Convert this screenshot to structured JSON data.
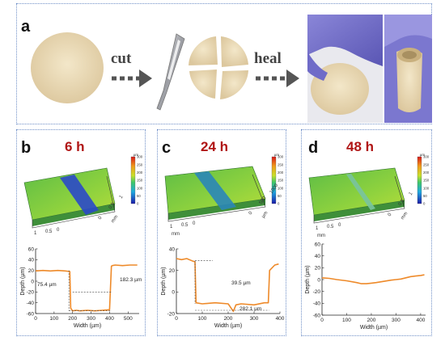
{
  "panel_a": {
    "label": "a",
    "cut_text": "cut",
    "heal_text": "heal"
  },
  "panels": [
    {
      "label": "b",
      "time": "6 h",
      "colorbar": {
        "unit": "µm",
        "ticks": [
          "300",
          "250",
          "200",
          "150",
          "100",
          "50",
          "0"
        ]
      },
      "surface_axes": {
        "x_ticks": [
          "1",
          "0.5",
          "0"
        ],
        "x_unit": "mm",
        "y_ticks": [
          "0",
          "0.5",
          "1"
        ],
        "y_unit": "mm"
      },
      "chart_data": {
        "type": "line",
        "xlabel": "Width (µm)",
        "ylabel": "Depth (µm)",
        "xlim": [
          0,
          560
        ],
        "ylim": [
          -60,
          60
        ],
        "x_ticks": [
          0,
          100,
          200,
          300,
          400,
          500
        ],
        "y_ticks": [
          -60,
          -40,
          -20,
          0,
          20,
          40,
          60
        ],
        "annotations": [
          "75.4 µm",
          "182.3 µm"
        ],
        "x": [
          0,
          40,
          80,
          120,
          160,
          185,
          190,
          200,
          220,
          240,
          280,
          320,
          360,
          400,
          410,
          415,
          430,
          470,
          510,
          550
        ],
        "y": [
          19,
          20,
          19,
          20,
          19,
          18,
          -50,
          -55,
          -54,
          -55,
          -54,
          -55,
          -54,
          -53,
          28,
          29,
          30,
          29,
          30,
          30
        ]
      }
    },
    {
      "label": "c",
      "time": "24 h",
      "colorbar": {
        "unit": "µm",
        "ticks": [
          "300",
          "250",
          "200",
          "150",
          "100",
          "50",
          "0"
        ]
      },
      "surface_axes": {
        "x_ticks": [
          "1",
          "0.5",
          "0"
        ],
        "x_unit": "mm",
        "y_ticks": [
          "0",
          "500",
          "1000"
        ],
        "y_unit": "µm"
      },
      "chart_data": {
        "type": "line",
        "xlabel": "Width (µm)",
        "ylabel": "Depth (µm)",
        "xlim": [
          0,
          400
        ],
        "ylim": [
          -20,
          40
        ],
        "x_ticks": [
          0,
          100,
          200,
          300,
          400
        ],
        "y_ticks": [
          -20,
          0,
          20,
          40
        ],
        "annotations": [
          "39.5 µm",
          "282.1 µm"
        ],
        "x": [
          0,
          20,
          40,
          60,
          72,
          76,
          100,
          150,
          200,
          220,
          230,
          250,
          300,
          340,
          355,
          360,
          380,
          395
        ],
        "y": [
          31,
          30,
          31,
          29,
          28,
          -10,
          -11,
          -10,
          -11,
          -18,
          -12,
          -11,
          -12,
          -10,
          -10,
          20,
          25,
          26
        ]
      }
    },
    {
      "label": "d",
      "time": "48 h",
      "colorbar": {
        "unit": "µm",
        "ticks": [
          "300",
          "250",
          "200",
          "150",
          "100",
          "50",
          "0"
        ]
      },
      "surface_axes": {
        "x_ticks": [
          "1",
          "0.5",
          "0"
        ],
        "x_unit": "mm",
        "y_ticks": [
          "0",
          "0.5",
          "1"
        ],
        "y_unit": "mm"
      },
      "chart_data": {
        "type": "line",
        "xlabel": "Width (µm)",
        "ylabel": "Depth (µm)",
        "xlim": [
          0,
          420
        ],
        "ylim": [
          -60,
          60
        ],
        "x_ticks": [
          0,
          100,
          200,
          300,
          400
        ],
        "y_ticks": [
          -60,
          -40,
          -20,
          0,
          20,
          40,
          60
        ],
        "annotations": [],
        "x": [
          0,
          30,
          60,
          100,
          140,
          160,
          180,
          200,
          220,
          250,
          280,
          300,
          320,
          340,
          360,
          380,
          400,
          415
        ],
        "y": [
          3,
          2,
          0,
          -2,
          -5,
          -7,
          -7,
          -6,
          -5,
          -3,
          -1,
          0,
          1,
          3,
          5,
          6,
          7,
          8
        ]
      }
    }
  ]
}
